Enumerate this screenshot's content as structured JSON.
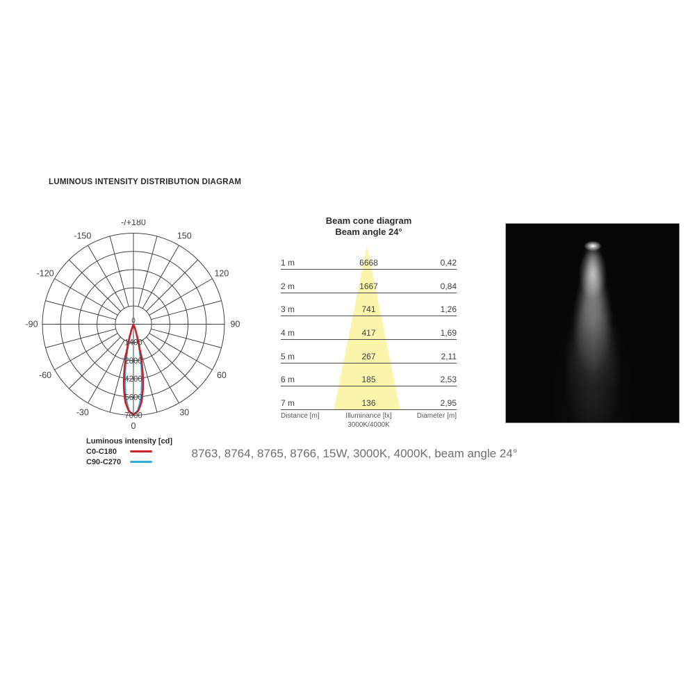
{
  "page": {
    "title": "LUMINOUS INTENSITY DISTRIBUTION DIAGRAM",
    "description": "8763, 8764, 8765, 8766, 15W, 3000K, 4000K, beam angle 24°"
  },
  "chart_data": [
    {
      "type": "line",
      "variant": "polar-photometric",
      "units": "cd",
      "legend_title": "Luminous intensity [cd]",
      "max_cd": 7000,
      "ring_values": [
        1400,
        2800,
        4200,
        5600,
        7000
      ],
      "center_label": "0",
      "angle_step_deg": 15,
      "grid_color": "#414042",
      "angle_labels": [
        {
          "deg": 0,
          "label": "0"
        },
        {
          "deg": 30,
          "label": "30"
        },
        {
          "deg": 60,
          "label": "60"
        },
        {
          "deg": 90,
          "label": "90"
        },
        {
          "deg": 120,
          "label": "120"
        },
        {
          "deg": 150,
          "label": "150"
        },
        {
          "deg": 180,
          "label": "-/+180"
        },
        {
          "deg": -150,
          "label": "-150"
        },
        {
          "deg": -120,
          "label": "-120"
        },
        {
          "deg": -90,
          "label": "-90"
        },
        {
          "deg": -60,
          "label": "-60"
        },
        {
          "deg": -30,
          "label": "-30"
        }
      ],
      "series": [
        {
          "name": "C0-C180",
          "color": "#cb2229",
          "points_theta_deg_cd": [
            [
              0,
              6950
            ],
            [
              3,
              6700
            ],
            [
              6,
              6000
            ],
            [
              9,
              4750
            ],
            [
              12,
              3150
            ],
            [
              15,
              1650
            ],
            [
              18,
              700
            ],
            [
              21,
              220
            ],
            [
              24,
              50
            ],
            [
              27,
              0
            ]
          ]
        },
        {
          "name": "C90-C270",
          "color": "#2fabdf",
          "points_theta_deg_cd": [
            [
              0,
              7000
            ],
            [
              3,
              6600
            ],
            [
              6,
              5600
            ],
            [
              9,
              4100
            ],
            [
              12,
              2500
            ],
            [
              15,
              1150
            ],
            [
              18,
              420
            ],
            [
              21,
              110
            ],
            [
              24,
              15
            ],
            [
              26,
              0
            ]
          ]
        }
      ]
    },
    {
      "type": "table",
      "title": "Beam cone diagram",
      "subtitle": "Beam angle 24°",
      "cone_color": "#faf5ab",
      "columns": [
        "Distance [m]",
        "Illuminance [lx] 3000K/4000K",
        "Diameter [m]"
      ],
      "footer": {
        "col1": "Distance [m]",
        "col2_line1": "Illuminance [lx]",
        "col2_line2": "3000K/4000K",
        "col3": "Diameter [m]"
      },
      "rows": [
        [
          "1 m",
          "6668",
          "0,42"
        ],
        [
          "2 m",
          "1667",
          "0,84"
        ],
        [
          "3 m",
          "741",
          "1,26"
        ],
        [
          "4 m",
          "417",
          "1,69"
        ],
        [
          "5 m",
          "267",
          "2,11"
        ],
        [
          "6 m",
          "185",
          "2,53"
        ],
        [
          "7 m",
          "136",
          "2,95"
        ]
      ]
    }
  ],
  "photo": {
    "alt": "spotlight beam photograph",
    "background": "#070706"
  }
}
